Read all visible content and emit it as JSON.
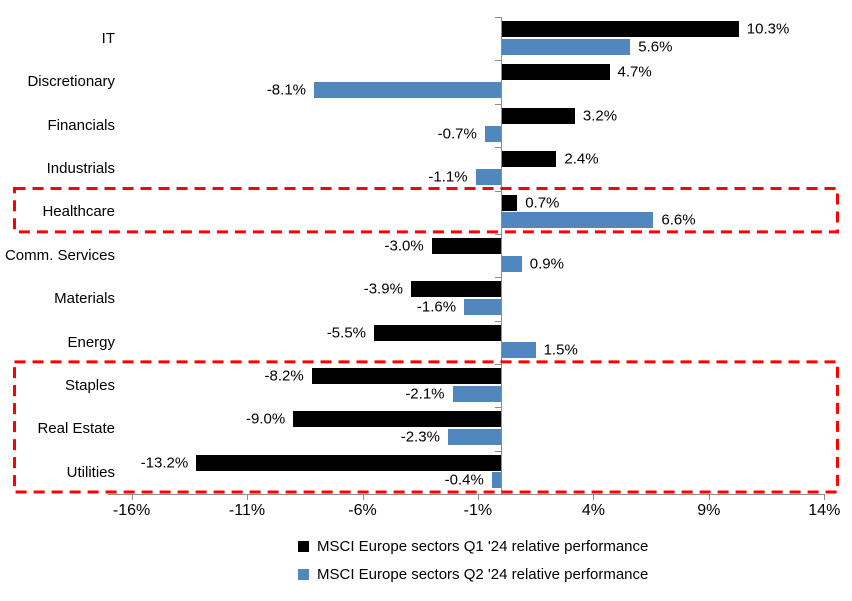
{
  "chart_data": {
    "type": "bar",
    "orientation": "horizontal",
    "title": "",
    "categories": [
      "IT",
      "Discretionary",
      "Financials",
      "Industrials",
      "Healthcare",
      "Comm. Services",
      "Materials",
      "Energy",
      "Staples",
      "Real Estate",
      "Utilities"
    ],
    "series": [
      {
        "name": "MSCI Europe sectors Q1 '24 relative performance",
        "color": "#000000",
        "values": [
          10.3,
          4.7,
          3.2,
          2.4,
          0.7,
          -3.0,
          -3.9,
          -5.5,
          -8.2,
          -9.0,
          -13.2
        ],
        "labels": [
          "10.3%",
          "4.7%",
          "3.2%",
          "2.4%",
          "0.7%",
          "-3.0%",
          "-3.9%",
          "-5.5%",
          "-8.2%",
          "-9.0%",
          "-13.2%"
        ]
      },
      {
        "name": "MSCI Europe sectors Q2 '24 relative performance",
        "color": "#4F87BE",
        "values": [
          5.6,
          -8.1,
          -0.7,
          -1.1,
          6.6,
          0.9,
          -1.6,
          1.5,
          -2.1,
          -2.3,
          -0.4
        ],
        "labels": [
          "5.6%",
          "-8.1%",
          "-0.7%",
          "-1.1%",
          "6.6%",
          "0.9%",
          "-1.6%",
          "1.5%",
          "-2.1%",
          "-2.3%",
          "-0.4%"
        ]
      }
    ],
    "x_ticks": [
      {
        "value": -16,
        "label": "-16%"
      },
      {
        "value": -11,
        "label": "-11%"
      },
      {
        "value": -6,
        "label": "-6%"
      },
      {
        "value": -1,
        "label": "-1%"
      },
      {
        "value": 4,
        "label": "4%"
      },
      {
        "value": 9,
        "label": "9%"
      },
      {
        "value": 14,
        "label": "14%"
      }
    ],
    "xlim": [
      -17,
      14
    ],
    "grid": false,
    "legend_position": "bottom",
    "axis_color": "#8C8C8C",
    "annotations": {
      "highlight_boxes": [
        {
          "name": "healthcare-highlight",
          "categories": [
            "Healthcare"
          ],
          "color": "#FF0000"
        },
        {
          "name": "defensives-highlight",
          "categories": [
            "Staples",
            "Real Estate",
            "Utilities"
          ],
          "color": "#FF0000"
        }
      ]
    }
  }
}
